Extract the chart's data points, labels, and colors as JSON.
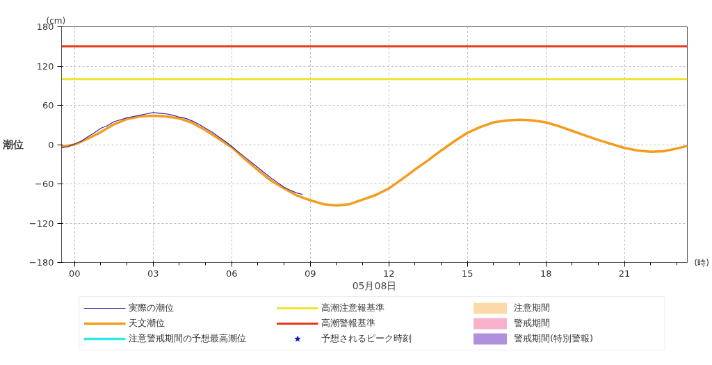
{
  "chart_data": {
    "type": "line",
    "xlabel": "05月08日",
    "ylabel": "潮位",
    "annotations": [
      "(cm)",
      "(時)"
    ],
    "xlim": [
      -0.5,
      23.4
    ],
    "ylim": [
      -180,
      180
    ],
    "xticks": [
      {
        "value": 0,
        "label": "00"
      },
      {
        "value": 3,
        "label": "03"
      },
      {
        "value": 6,
        "label": "06"
      },
      {
        "value": 9,
        "label": "09"
      },
      {
        "value": 12,
        "label": "12"
      },
      {
        "value": 15,
        "label": "15"
      },
      {
        "value": 18,
        "label": "18"
      },
      {
        "value": 21,
        "label": "21"
      }
    ],
    "yticks": [
      -180,
      -120,
      -60,
      0,
      60,
      120,
      180
    ],
    "grid": true,
    "legend": "bottom",
    "ref_lines": [
      {
        "axis": "y",
        "value": 100,
        "label": "高潮注意報基準",
        "color": "#ece52a"
      },
      {
        "axis": "y",
        "value": 150,
        "label": "高潮警報基準",
        "color": "#e8381a"
      }
    ],
    "series": [
      {
        "name": "実際の潮位",
        "color": "#3b22a0",
        "x": [
          -0.5,
          -0.25,
          0,
          0.25,
          0.5,
          0.75,
          1,
          1.25,
          1.5,
          1.75,
          2,
          2.25,
          2.5,
          2.75,
          3,
          3.25,
          3.5,
          3.75,
          4,
          4.25,
          4.5,
          4.75,
          5,
          5.25,
          5.5,
          5.75,
          6,
          6.25,
          6.5,
          6.75,
          7,
          7.25,
          7.5,
          7.75,
          8,
          8.25,
          8.5,
          8.7
        ],
        "values": [
          -5,
          -3,
          1,
          5,
          12,
          18,
          25,
          29,
          35,
          38,
          41,
          43,
          45,
          47,
          49,
          48,
          47,
          45,
          42,
          40,
          36,
          31,
          25,
          19,
          12,
          5,
          -3,
          -11,
          -19,
          -27,
          -35,
          -43,
          -51,
          -58,
          -65,
          -70,
          -74,
          -76
        ]
      },
      {
        "name": "天文潮位",
        "color": "#f39c1e",
        "x": [
          -0.5,
          0,
          0.5,
          1,
          1.5,
          2,
          2.5,
          3,
          3.5,
          4,
          4.5,
          5,
          5.5,
          6,
          6.5,
          7,
          7.5,
          8,
          8.5,
          9,
          9.5,
          10,
          10.5,
          11,
          11.5,
          12,
          12.5,
          13,
          13.5,
          14,
          14.5,
          15,
          15.5,
          16,
          16.5,
          17,
          17.5,
          18,
          18.5,
          19,
          19.5,
          20,
          20.5,
          21,
          21.5,
          22,
          22.5,
          23,
          23.4
        ],
        "values": [
          -3,
          0,
          9,
          19,
          31,
          39,
          43,
          44,
          43,
          40,
          33,
          22,
          9,
          -4,
          -22,
          -39,
          -55,
          -67,
          -78,
          -85,
          -91,
          -93,
          -91,
          -84,
          -77,
          -67,
          -53,
          -38,
          -24,
          -9,
          5,
          18,
          27,
          34,
          37,
          38,
          37,
          34,
          28,
          21,
          14,
          7,
          1,
          -5,
          -9,
          -11,
          -10,
          -6,
          -2
        ]
      },
      {
        "name": "注意警戒期間の予想最高潮位",
        "color": "#30e8e8"
      },
      {
        "name": "予想されるピーク時刻",
        "type": "scatter",
        "marker": "star",
        "color": "#1010d0"
      },
      {
        "name": "注意期間",
        "type": "area",
        "color": "#fcd9a8"
      },
      {
        "name": "警戒期間",
        "type": "area",
        "color": "#f9b1cc"
      },
      {
        "name": "警戒期間(特別警報)",
        "type": "area",
        "color": "#b08fdc"
      }
    ]
  }
}
